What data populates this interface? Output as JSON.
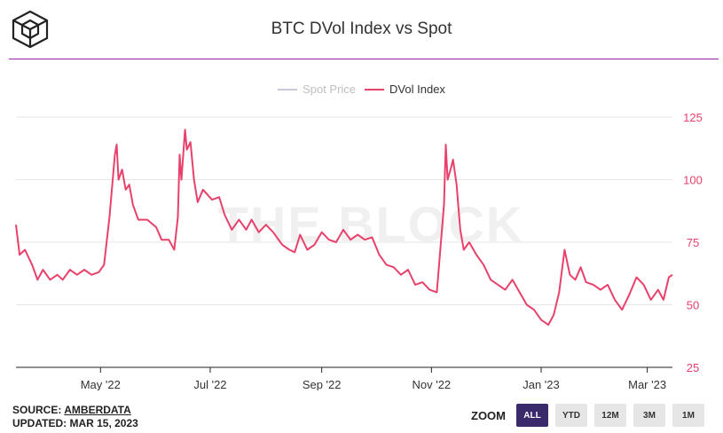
{
  "header": {
    "title": "BTC DVol Index vs Spot"
  },
  "legend": [
    {
      "label": "Spot Price",
      "color": "#c8c8d6",
      "state": "hidden"
    },
    {
      "label": "DVol Index",
      "color": "#e8416b",
      "state": "visible"
    }
  ],
  "watermark": "THE BLOCK",
  "footer": {
    "source_prefix": "SOURCE:",
    "source_name": "AMBERDATA",
    "updated": "UPDATED: MAR 15, 2023"
  },
  "zoom": {
    "label": "ZOOM",
    "buttons": [
      "ALL",
      "YTD",
      "12M",
      "3M",
      "1M"
    ],
    "selected": "ALL"
  },
  "chart_data": {
    "type": "line",
    "title": "BTC DVol Index vs Spot",
    "x_ticks": [
      "May '22",
      "Jul '22",
      "Sep '22",
      "Nov '22",
      "Jan '23",
      "Mar '23"
    ],
    "y_ticks": [
      25,
      50,
      75,
      100,
      125
    ],
    "ylim": [
      25,
      125
    ],
    "axis_side": "right",
    "series": [
      {
        "name": "DVol Index",
        "color": "#e8416b",
        "points": [
          [
            "2022-03-15",
            82
          ],
          [
            "2022-03-17",
            70
          ],
          [
            "2022-03-20",
            72
          ],
          [
            "2022-03-24",
            66
          ],
          [
            "2022-03-27",
            60
          ],
          [
            "2022-03-30",
            64
          ],
          [
            "2022-04-03",
            60
          ],
          [
            "2022-04-07",
            62
          ],
          [
            "2022-04-10",
            60
          ],
          [
            "2022-04-14",
            64
          ],
          [
            "2022-04-18",
            62
          ],
          [
            "2022-04-22",
            64
          ],
          [
            "2022-04-26",
            62
          ],
          [
            "2022-04-30",
            63
          ],
          [
            "2022-05-03",
            66
          ],
          [
            "2022-05-06",
            85
          ],
          [
            "2022-05-09",
            110
          ],
          [
            "2022-05-10",
            114
          ],
          [
            "2022-05-11",
            100
          ],
          [
            "2022-05-13",
            104
          ],
          [
            "2022-05-15",
            96
          ],
          [
            "2022-05-17",
            98
          ],
          [
            "2022-05-19",
            90
          ],
          [
            "2022-05-22",
            84
          ],
          [
            "2022-05-27",
            84
          ],
          [
            "2022-06-01",
            81
          ],
          [
            "2022-06-04",
            76
          ],
          [
            "2022-06-08",
            76
          ],
          [
            "2022-06-11",
            72
          ],
          [
            "2022-06-13",
            85
          ],
          [
            "2022-06-14",
            110
          ],
          [
            "2022-06-15",
            100
          ],
          [
            "2022-06-17",
            120
          ],
          [
            "2022-06-18",
            112
          ],
          [
            "2022-06-20",
            115
          ],
          [
            "2022-06-22",
            100
          ],
          [
            "2022-06-24",
            91
          ],
          [
            "2022-06-27",
            96
          ],
          [
            "2022-07-02",
            92
          ],
          [
            "2022-07-06",
            93
          ],
          [
            "2022-07-09",
            86
          ],
          [
            "2022-07-13",
            80
          ],
          [
            "2022-07-17",
            84
          ],
          [
            "2022-07-21",
            80
          ],
          [
            "2022-07-24",
            84
          ],
          [
            "2022-07-28",
            79
          ],
          [
            "2022-08-01",
            82
          ],
          [
            "2022-08-05",
            79
          ],
          [
            "2022-08-10",
            74
          ],
          [
            "2022-08-14",
            72
          ],
          [
            "2022-08-17",
            71
          ],
          [
            "2022-08-20",
            78
          ],
          [
            "2022-08-24",
            72
          ],
          [
            "2022-08-28",
            74
          ],
          [
            "2022-09-01",
            79
          ],
          [
            "2022-09-05",
            76
          ],
          [
            "2022-09-09",
            75
          ],
          [
            "2022-09-13",
            80
          ],
          [
            "2022-09-17",
            76
          ],
          [
            "2022-09-21",
            78
          ],
          [
            "2022-09-25",
            76
          ],
          [
            "2022-09-29",
            77
          ],
          [
            "2022-10-03",
            70
          ],
          [
            "2022-10-07",
            66
          ],
          [
            "2022-10-11",
            65
          ],
          [
            "2022-10-15",
            62
          ],
          [
            "2022-10-19",
            64
          ],
          [
            "2022-10-23",
            58
          ],
          [
            "2022-10-27",
            59
          ],
          [
            "2022-10-31",
            56
          ],
          [
            "2022-11-04",
            55
          ],
          [
            "2022-11-08",
            90
          ],
          [
            "2022-11-09",
            114
          ],
          [
            "2022-11-10",
            100
          ],
          [
            "2022-11-12",
            105
          ],
          [
            "2022-11-13",
            108
          ],
          [
            "2022-11-15",
            98
          ],
          [
            "2022-11-17",
            80
          ],
          [
            "2022-11-19",
            72
          ],
          [
            "2022-11-22",
            75
          ],
          [
            "2022-11-26",
            70
          ],
          [
            "2022-11-30",
            66
          ],
          [
            "2022-12-04",
            60
          ],
          [
            "2022-12-08",
            58
          ],
          [
            "2022-12-12",
            56
          ],
          [
            "2022-12-16",
            60
          ],
          [
            "2022-12-20",
            55
          ],
          [
            "2022-12-24",
            50
          ],
          [
            "2022-12-28",
            48
          ],
          [
            "2023-01-01",
            44
          ],
          [
            "2023-01-05",
            42
          ],
          [
            "2023-01-08",
            46
          ],
          [
            "2023-01-11",
            55
          ],
          [
            "2023-01-14",
            72
          ],
          [
            "2023-01-17",
            62
          ],
          [
            "2023-01-20",
            60
          ],
          [
            "2023-01-23",
            65
          ],
          [
            "2023-01-26",
            59
          ],
          [
            "2023-01-30",
            58
          ],
          [
            "2023-02-03",
            56
          ],
          [
            "2023-02-07",
            58
          ],
          [
            "2023-02-11",
            52
          ],
          [
            "2023-02-15",
            48
          ],
          [
            "2023-02-19",
            54
          ],
          [
            "2023-02-23",
            61
          ],
          [
            "2023-02-27",
            58
          ],
          [
            "2023-03-03",
            52
          ],
          [
            "2023-03-07",
            56
          ],
          [
            "2023-03-10",
            52
          ],
          [
            "2023-03-13",
            61
          ],
          [
            "2023-03-15",
            62
          ]
        ]
      }
    ]
  }
}
